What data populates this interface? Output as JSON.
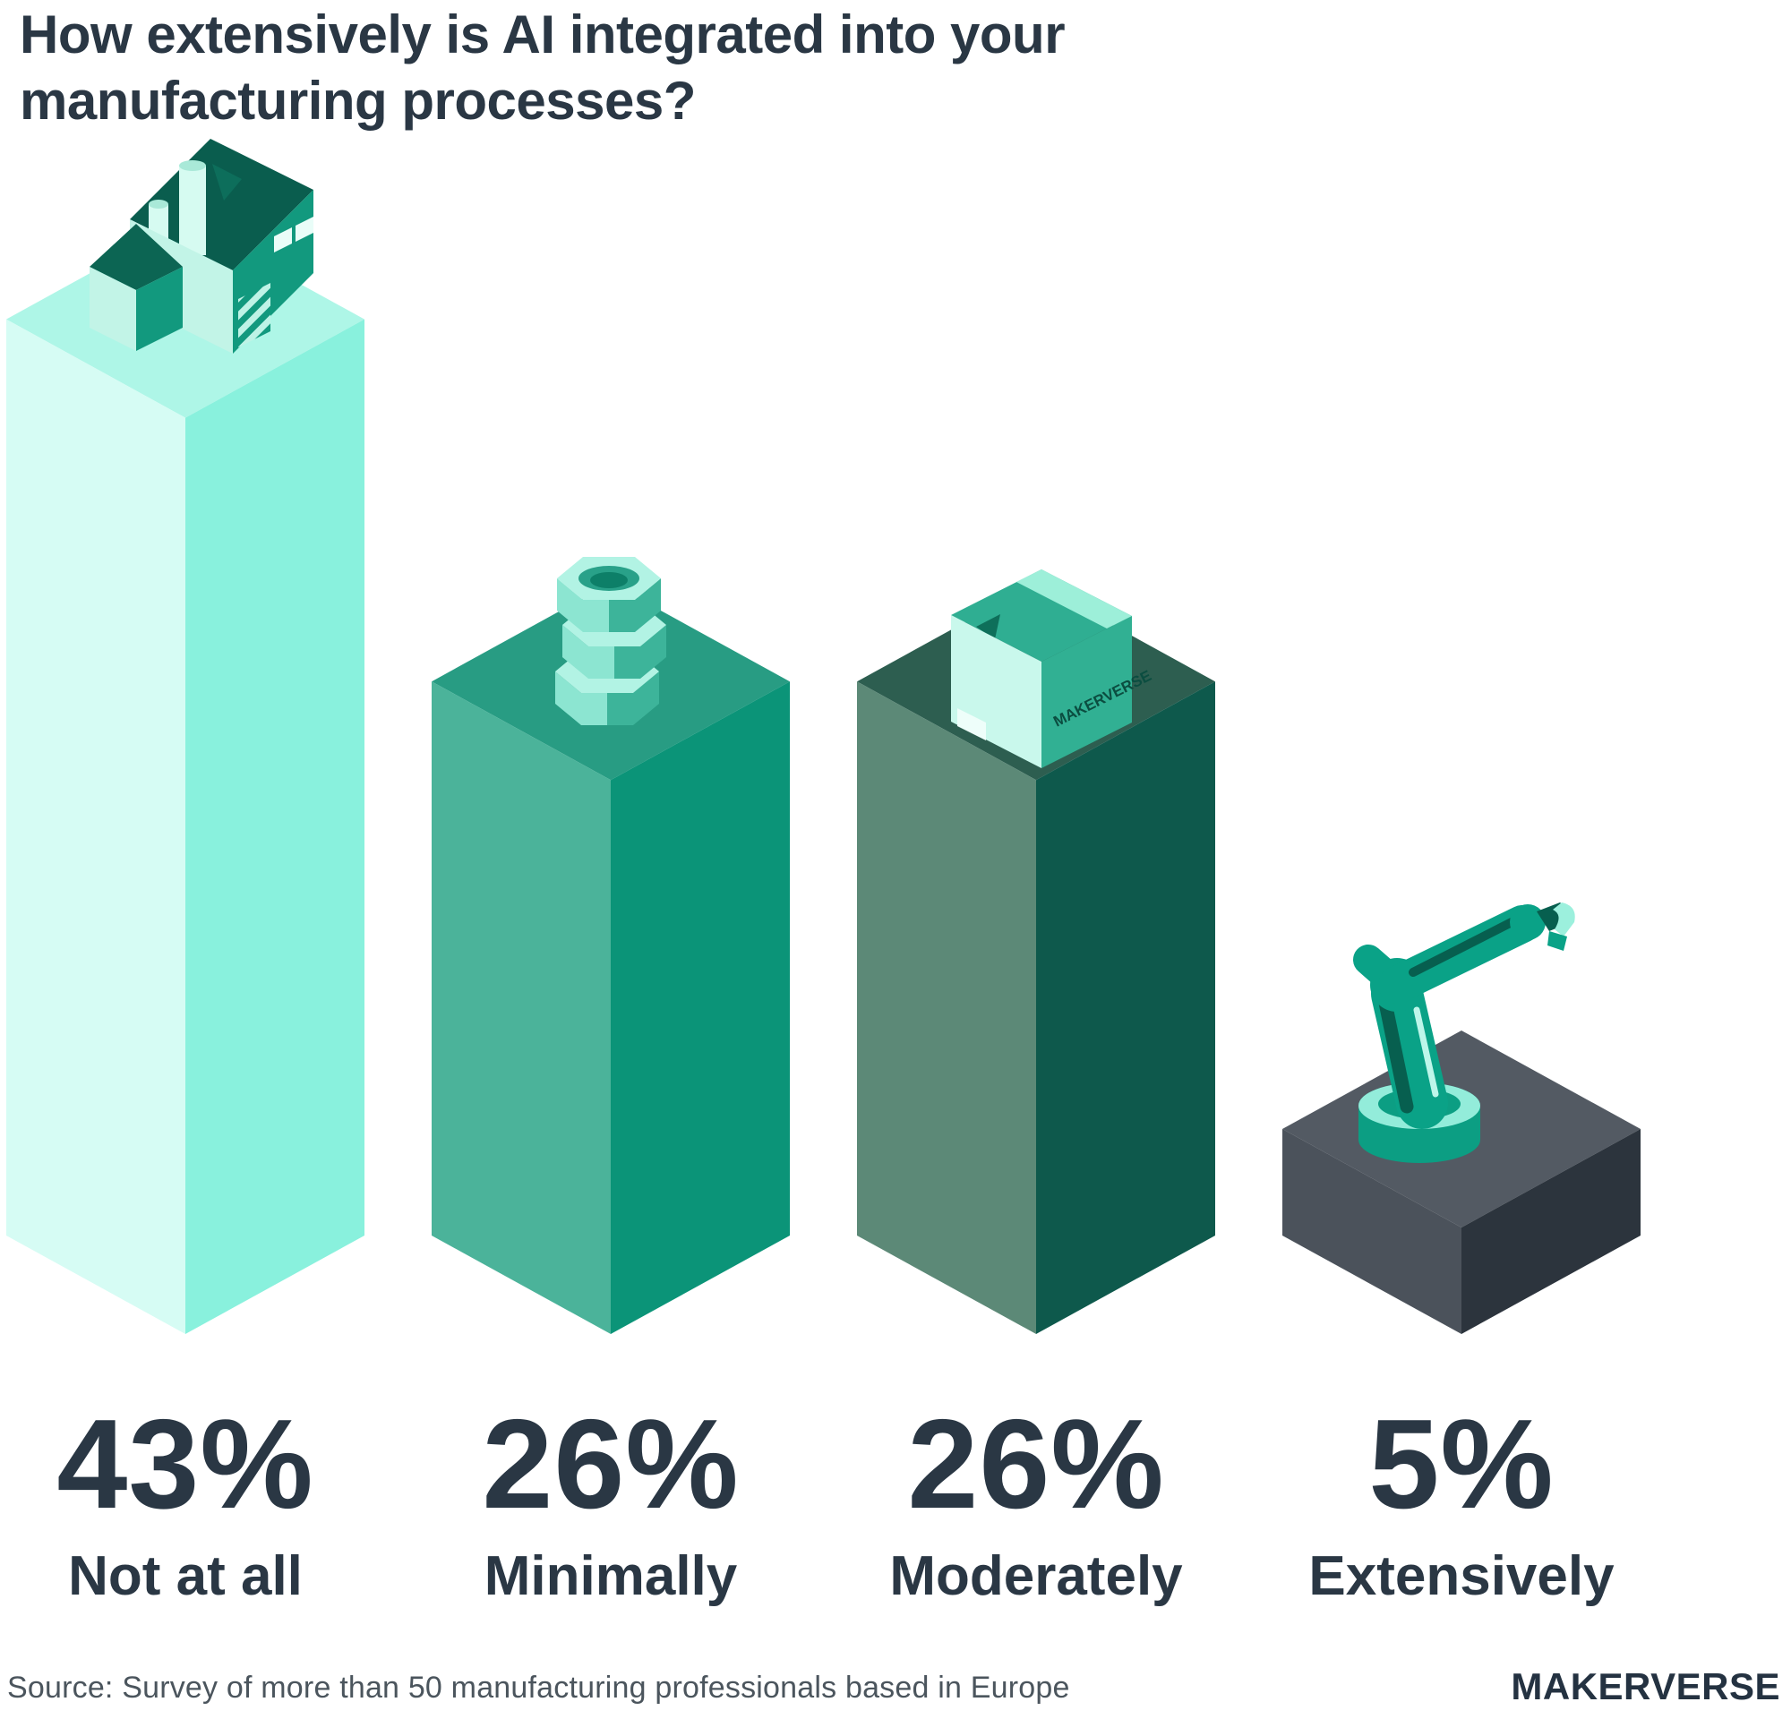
{
  "title": "How extensively is AI integrated into your manufacturing processes?",
  "source": "Source: Survey of more than 50 manufacturing professionals based in Europe",
  "brand": "MAKERVERSE",
  "colors": {
    "text_dark": "#2a3744",
    "source_text": "#4b555d",
    "background": "#ffffff"
  },
  "chart_data": {
    "type": "bar",
    "style": "isometric-3d-columns",
    "title": "How extensively is AI integrated into your manufacturing processes?",
    "categories": [
      "Not at all",
      "Minimally",
      "Moderately",
      "Extensively"
    ],
    "values": [
      43,
      26,
      26,
      5
    ],
    "unit": "%",
    "xlabel": "",
    "ylabel": "",
    "legend": false,
    "grid": false,
    "box_label": "MAKERVERSE",
    "bars": [
      {
        "label": "Not at all",
        "value": 43,
        "value_label": "43%",
        "icon": "factory",
        "face_colors": {
          "top": "#aef6e7",
          "left": "#d6fcf4",
          "right": "#89f1dd"
        }
      },
      {
        "label": "Minimally",
        "value": 26,
        "value_label": "26%",
        "icon": "bolt-nuts",
        "face_colors": {
          "top": "#289c83",
          "left": "#4bb39a",
          "right": "#0b9478"
        }
      },
      {
        "label": "Moderately",
        "value": 26,
        "value_label": "26%",
        "icon": "makerverse-box",
        "face_colors": {
          "top": "#2d5e50",
          "left": "#5c8977",
          "right": "#0e594c"
        }
      },
      {
        "label": "Extensively",
        "value": 5,
        "value_label": "5%",
        "icon": "robot-arm",
        "face_colors": {
          "top": "#535a63",
          "left": "#4b525b",
          "right": "#2c343d"
        }
      }
    ]
  }
}
